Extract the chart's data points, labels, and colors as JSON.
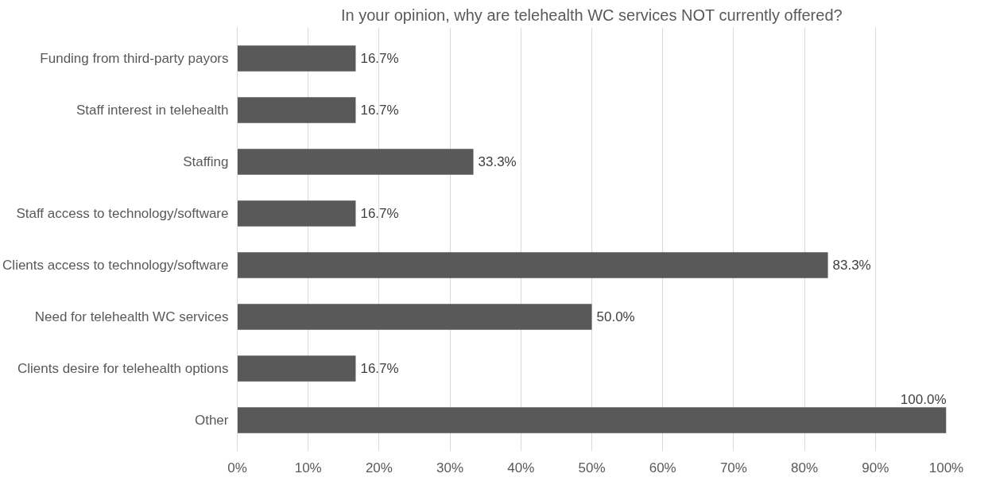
{
  "chart_data": {
    "type": "bar",
    "orientation": "horizontal",
    "title": "In your opinion, why are telehealth WC services NOT currently offered?",
    "categories": [
      "Funding from third-party payors",
      "Staff interest in telehealth",
      "Staffing",
      "Staff access to technology/software",
      "Clients access to technology/software",
      "Need for telehealth WC services",
      "Clients desire for telehealth options",
      "Other"
    ],
    "values": [
      16.7,
      16.7,
      33.3,
      16.7,
      83.3,
      50.0,
      16.7,
      100.0
    ],
    "value_labels": [
      "16.7%",
      "16.7%",
      "33.3%",
      "16.7%",
      "83.3%",
      "50.0%",
      "16.7%",
      "100.0%"
    ],
    "color": "#595959",
    "xlim": [
      0,
      100
    ],
    "xticks": [
      {
        "value": 0,
        "label": "0%"
      },
      {
        "value": 10,
        "label": "10%"
      },
      {
        "value": 20,
        "label": "20%"
      },
      {
        "value": 30,
        "label": "30%"
      },
      {
        "value": 40,
        "label": "40%"
      },
      {
        "value": 50,
        "label": "50%"
      },
      {
        "value": 60,
        "label": "60%"
      },
      {
        "value": 70,
        "label": "70%"
      },
      {
        "value": 80,
        "label": "80%"
      },
      {
        "value": 90,
        "label": "90%"
      },
      {
        "value": 100,
        "label": "100%"
      }
    ],
    "grid": "x"
  }
}
